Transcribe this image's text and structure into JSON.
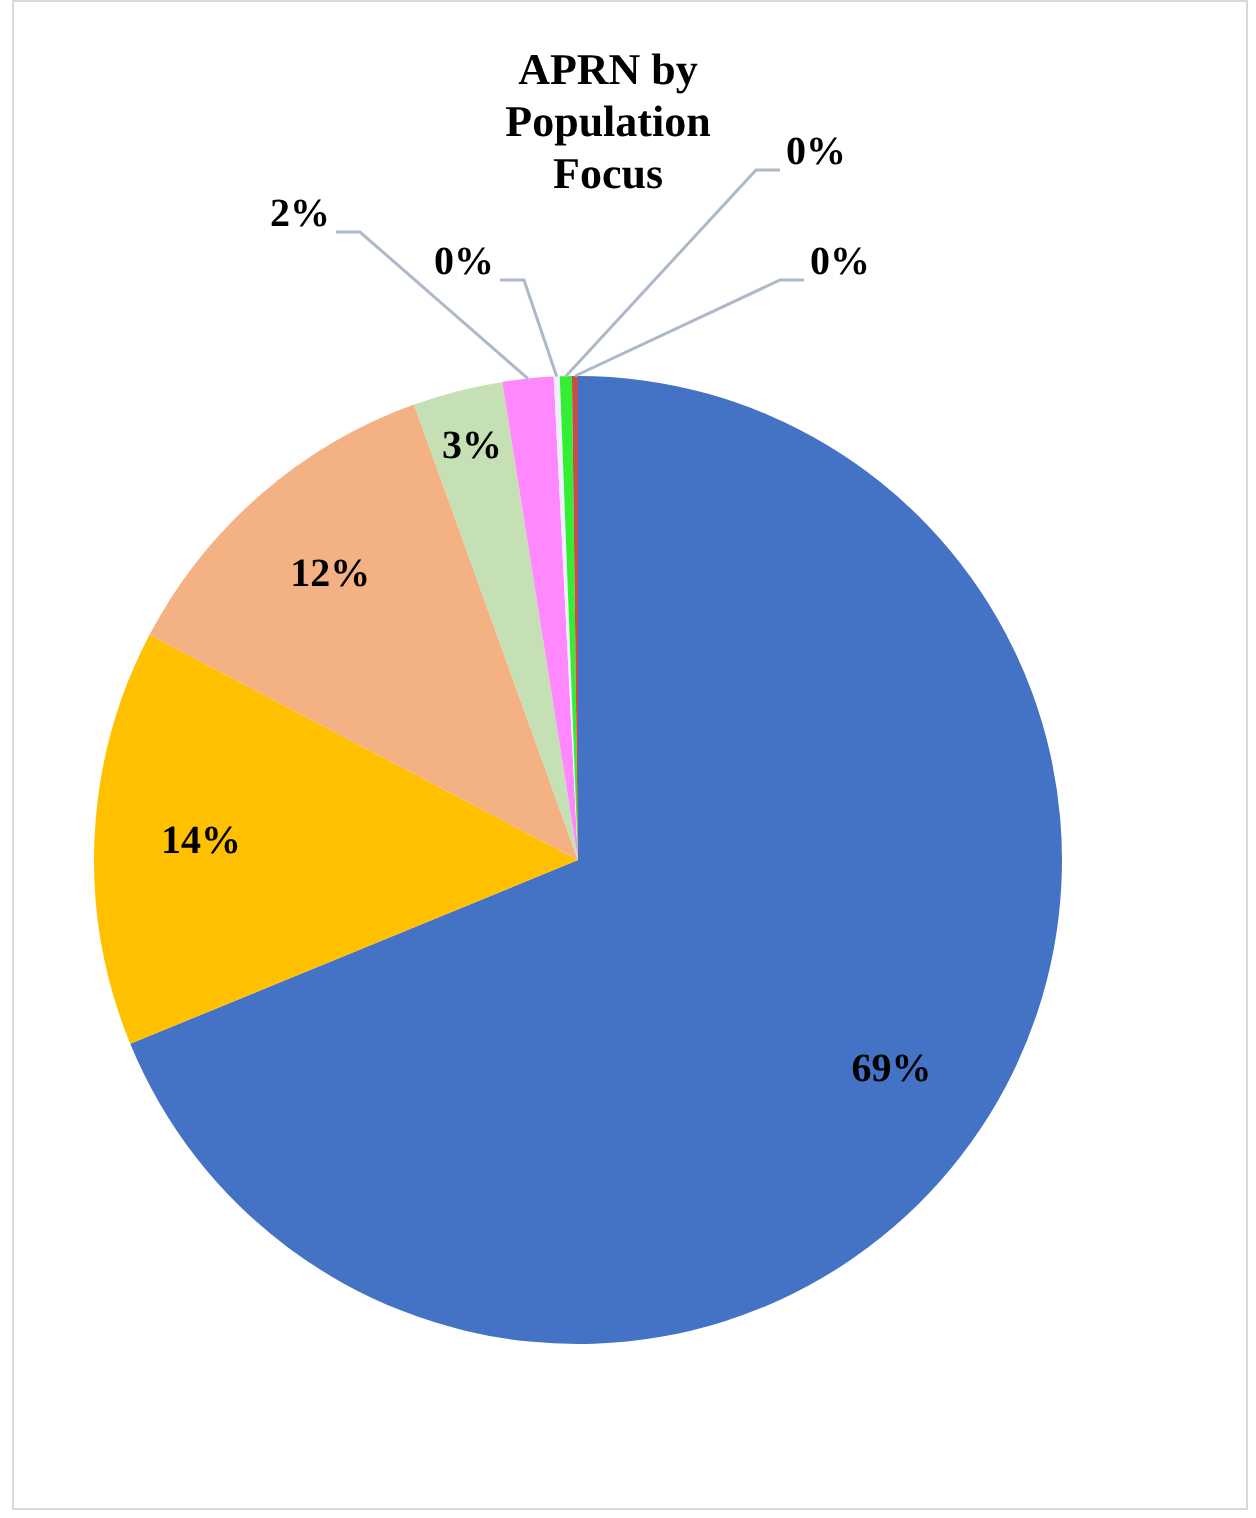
{
  "chart_data": {
    "type": "pie",
    "title": "APRN by Population Focus",
    "categories": [
      null,
      null,
      null,
      null,
      null,
      null,
      null,
      null
    ],
    "values": [
      68.8,
      13.9,
      11.8,
      3.0,
      1.7,
      0.2,
      0.4,
      0.2
    ],
    "value_labels": [
      "69%",
      "14%",
      "12%",
      "3%",
      "2%",
      "0%",
      "0%",
      "0%"
    ],
    "colors": [
      "#4472c4",
      "#ffc000",
      "#f4b183",
      "#c5e0b4",
      "#ff88ff",
      "#eef0ff",
      "#33ee33",
      "#c0504d"
    ],
    "legend": false
  }
}
